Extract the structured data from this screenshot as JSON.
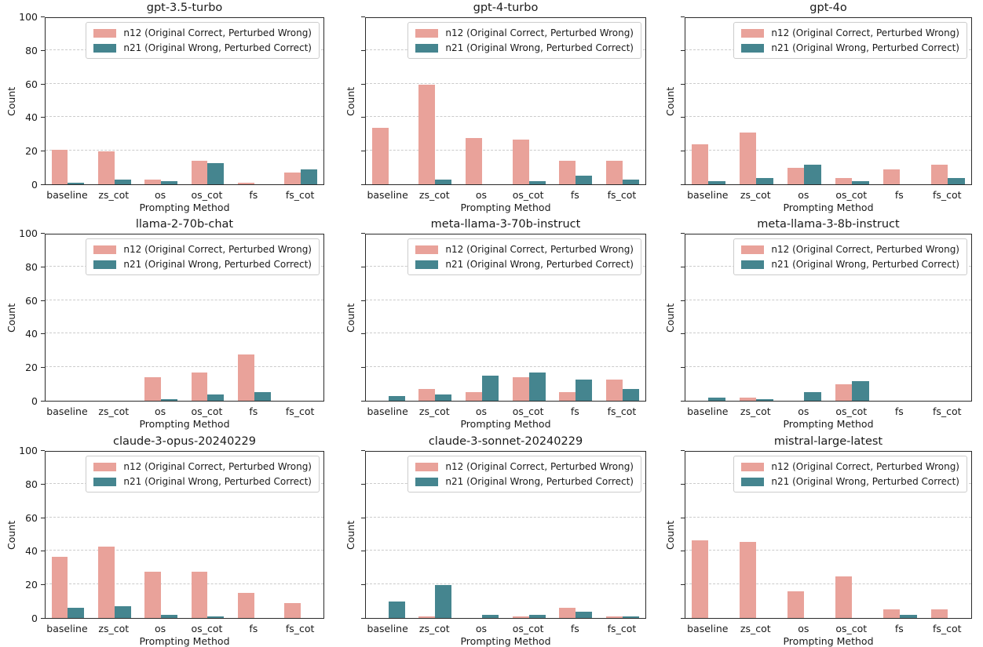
{
  "figure": {
    "ylabel": "Count",
    "xlabel": "Prompting Method",
    "categories": [
      "baseline",
      "zs_cot",
      "os",
      "os_cot",
      "fs",
      "fs_cot"
    ],
    "ytick_labels": [
      "0",
      "20",
      "40",
      "60",
      "80",
      "100"
    ],
    "yticks": [
      0,
      20,
      40,
      60,
      80,
      100
    ],
    "ylim": [
      0,
      100
    ],
    "grid": "horizontal-dashed",
    "legend_position": "upper-right-inside",
    "colors": {
      "n12": "#E9A29A",
      "n21": "#45858F",
      "gridline": "#cbcbcb",
      "spine": "#2b2b2b"
    },
    "legend": [
      {
        "key": "n12",
        "label": "n12 (Original Correct, Perturbed Wrong)",
        "color": "#E9A29A"
      },
      {
        "key": "n21",
        "label": "n21 (Original Wrong, Perturbed Correct)",
        "color": "#45858F"
      }
    ]
  },
  "chart_data": [
    {
      "type": "bar",
      "title": "gpt-3.5-turbo",
      "categories": [
        "baseline",
        "zs_cot",
        "os",
        "os_cot",
        "fs",
        "fs_cot"
      ],
      "xlabel": "Prompting Method",
      "ylabel": "Count",
      "ylim": [
        0,
        100
      ],
      "yticks_labeled": true,
      "series": [
        {
          "name": "n12 (Original Correct, Perturbed Wrong)",
          "color": "#E9A29A",
          "values": [
            21,
            20,
            3,
            14,
            1,
            7
          ]
        },
        {
          "name": "n21 (Original Wrong, Perturbed Correct)",
          "color": "#45858F",
          "values": [
            1,
            3,
            2,
            13,
            0,
            9
          ]
        }
      ]
    },
    {
      "type": "bar",
      "title": "gpt-4-turbo",
      "categories": [
        "baseline",
        "zs_cot",
        "os",
        "os_cot",
        "fs",
        "fs_cot"
      ],
      "xlabel": "Prompting Method",
      "ylabel": "Count",
      "ylim": [
        0,
        100
      ],
      "yticks_labeled": false,
      "series": [
        {
          "name": "n12 (Original Correct, Perturbed Wrong)",
          "color": "#E9A29A",
          "values": [
            34,
            60,
            28,
            27,
            14,
            14
          ]
        },
        {
          "name": "n21 (Original Wrong, Perturbed Correct)",
          "color": "#45858F",
          "values": [
            0,
            3,
            0,
            2,
            5,
            3
          ]
        }
      ]
    },
    {
      "type": "bar",
      "title": "gpt-4o",
      "categories": [
        "baseline",
        "zs_cot",
        "os",
        "os_cot",
        "fs",
        "fs_cot"
      ],
      "xlabel": "Prompting Method",
      "ylabel": "Count",
      "ylim": [
        0,
        100
      ],
      "yticks_labeled": false,
      "series": [
        {
          "name": "n12 (Original Correct, Perturbed Wrong)",
          "color": "#E9A29A",
          "values": [
            24,
            31,
            10,
            4,
            9,
            12
          ]
        },
        {
          "name": "n21 (Original Wrong, Perturbed Correct)",
          "color": "#45858F",
          "values": [
            2,
            4,
            12,
            2,
            0,
            4
          ]
        }
      ]
    },
    {
      "type": "bar",
      "title": "llama-2-70b-chat",
      "categories": [
        "baseline",
        "zs_cot",
        "os",
        "os_cot",
        "fs",
        "fs_cot"
      ],
      "xlabel": "Prompting Method",
      "ylabel": "Count",
      "ylim": [
        0,
        100
      ],
      "yticks_labeled": true,
      "series": [
        {
          "name": "n12 (Original Correct, Perturbed Wrong)",
          "color": "#E9A29A",
          "values": [
            0,
            0,
            14,
            17,
            28,
            0
          ]
        },
        {
          "name": "n21 (Original Wrong, Perturbed Correct)",
          "color": "#45858F",
          "values": [
            0,
            0,
            1,
            4,
            5,
            0
          ]
        }
      ]
    },
    {
      "type": "bar",
      "title": "meta-llama-3-70b-instruct",
      "categories": [
        "baseline",
        "zs_cot",
        "os",
        "os_cot",
        "fs",
        "fs_cot"
      ],
      "xlabel": "Prompting Method",
      "ylabel": "Count",
      "ylim": [
        0,
        100
      ],
      "yticks_labeled": false,
      "series": [
        {
          "name": "n12 (Original Correct, Perturbed Wrong)",
          "color": "#E9A29A",
          "values": [
            0,
            7,
            5,
            14,
            5,
            13
          ]
        },
        {
          "name": "n21 (Original Wrong, Perturbed Correct)",
          "color": "#45858F",
          "values": [
            3,
            4,
            15,
            17,
            13,
            7
          ]
        }
      ]
    },
    {
      "type": "bar",
      "title": "meta-llama-3-8b-instruct",
      "categories": [
        "baseline",
        "zs_cot",
        "os",
        "os_cot",
        "fs",
        "fs_cot"
      ],
      "xlabel": "Prompting Method",
      "ylabel": "Count",
      "ylim": [
        0,
        100
      ],
      "yticks_labeled": false,
      "series": [
        {
          "name": "n12 (Original Correct, Perturbed Wrong)",
          "color": "#E9A29A",
          "values": [
            0,
            2,
            0,
            10,
            0,
            0
          ]
        },
        {
          "name": "n21 (Original Wrong, Perturbed Correct)",
          "color": "#45858F",
          "values": [
            2,
            1,
            5,
            12,
            0,
            0
          ]
        }
      ]
    },
    {
      "type": "bar",
      "title": "claude-3-opus-20240229",
      "categories": [
        "baseline",
        "zs_cot",
        "os",
        "os_cot",
        "fs",
        "fs_cot"
      ],
      "xlabel": "Prompting Method",
      "ylabel": "Count",
      "ylim": [
        0,
        100
      ],
      "yticks_labeled": true,
      "series": [
        {
          "name": "n12 (Original Correct, Perturbed Wrong)",
          "color": "#E9A29A",
          "values": [
            37,
            43,
            28,
            28,
            15,
            9
          ]
        },
        {
          "name": "n21 (Original Wrong, Perturbed Correct)",
          "color": "#45858F",
          "values": [
            6,
            7,
            2,
            1,
            0,
            0
          ]
        }
      ]
    },
    {
      "type": "bar",
      "title": "claude-3-sonnet-20240229",
      "categories": [
        "baseline",
        "zs_cot",
        "os",
        "os_cot",
        "fs",
        "fs_cot"
      ],
      "xlabel": "Prompting Method",
      "ylabel": "Count",
      "ylim": [
        0,
        100
      ],
      "yticks_labeled": false,
      "series": [
        {
          "name": "n12 (Original Correct, Perturbed Wrong)",
          "color": "#E9A29A",
          "values": [
            0,
            1,
            0,
            1,
            6,
            1
          ]
        },
        {
          "name": "n21 (Original Wrong, Perturbed Correct)",
          "color": "#45858F",
          "values": [
            10,
            20,
            2,
            2,
            4,
            1
          ]
        }
      ]
    },
    {
      "type": "bar",
      "title": "mistral-large-latest",
      "categories": [
        "baseline",
        "zs_cot",
        "os",
        "os_cot",
        "fs",
        "fs_cot"
      ],
      "xlabel": "Prompting Method",
      "ylabel": "Count",
      "ylim": [
        0,
        100
      ],
      "yticks_labeled": false,
      "series": [
        {
          "name": "n12 (Original Correct, Perturbed Wrong)",
          "color": "#E9A29A",
          "values": [
            47,
            46,
            16,
            25,
            5,
            5
          ]
        },
        {
          "name": "n21 (Original Wrong, Perturbed Correct)",
          "color": "#45858F",
          "values": [
            0,
            0,
            0,
            0,
            2,
            0
          ]
        }
      ]
    }
  ]
}
